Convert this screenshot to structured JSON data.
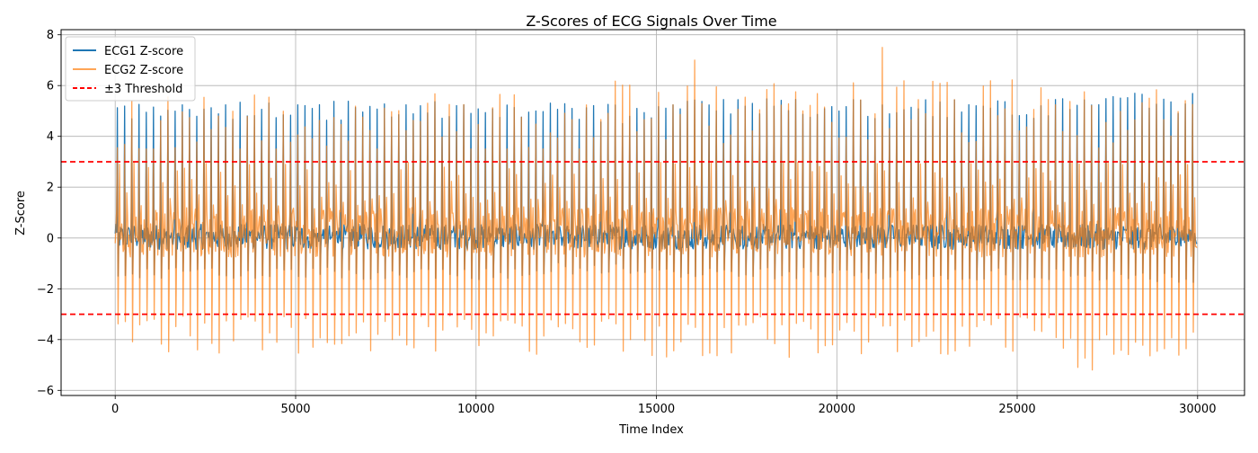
{
  "chart_data": {
    "type": "line",
    "title": "Z-Scores of ECG Signals Over Time",
    "xlabel": "Time Index",
    "ylabel": "Z-Score",
    "xlim": [
      -1500,
      31300
    ],
    "ylim": [
      -6.2,
      8.2
    ],
    "xticks": [
      0,
      5000,
      10000,
      15000,
      20000,
      25000,
      30000
    ],
    "yticks": [
      -6,
      -4,
      -2,
      0,
      2,
      4,
      6,
      8
    ],
    "grid": true,
    "legend_position": "upper-left",
    "series": [
      {
        "name": "ECG1 Z-score",
        "color": "#1f77b4",
        "x_range": [
          0,
          29850
        ],
        "beat_interval": 200,
        "baseline_band": [
          -1.5,
          1.2
        ],
        "peak_range": [
          4.5,
          5.8
        ],
        "segments": [
          {
            "x0": 0,
            "x1": 12000,
            "peak_mean": 5.0,
            "trough_mean": -1.4
          },
          {
            "x0": 12000,
            "x1": 14000,
            "peak_mean": 4.9,
            "trough_mean": -1.2
          },
          {
            "x0": 14000,
            "x1": 26500,
            "peak_mean": 5.1,
            "trough_mean": -1.4
          },
          {
            "x0": 26500,
            "x1": 29850,
            "peak_mean": 5.3,
            "trough_mean": -1.5
          }
        ]
      },
      {
        "name": "ECG2 Z-score",
        "color": "#ff7f0e",
        "opacity": 0.7,
        "x_range": [
          0,
          29850
        ],
        "beat_interval": 200,
        "baseline_band": [
          -2.5,
          2.5
        ],
        "peak_range": [
          3.5,
          7.5
        ],
        "trough_range": [
          -5.6,
          -3.0
        ],
        "segments": [
          {
            "x0": 0,
            "x1": 13500,
            "peak_mean": 4.4,
            "trough_mean": -3.8
          },
          {
            "x0": 13500,
            "x1": 26000,
            "peak_mean": 5.0,
            "trough_mean": -3.9
          },
          {
            "x0": 26000,
            "x1": 29850,
            "peak_mean": 4.6,
            "trough_mean": -4.4
          }
        ],
        "notable_peaks": [
          {
            "x": 21200,
            "y": 7.5
          },
          {
            "x": 25100,
            "y": 7.3
          },
          {
            "x": 14500,
            "y": 6.7
          },
          {
            "x": 16000,
            "y": 7.0
          },
          {
            "x": 28100,
            "y": -5.6
          }
        ]
      }
    ],
    "threshold": {
      "name": "±3 Threshold",
      "color": "#ff0000",
      "values": [
        3,
        -3
      ],
      "style": "dashed"
    }
  }
}
